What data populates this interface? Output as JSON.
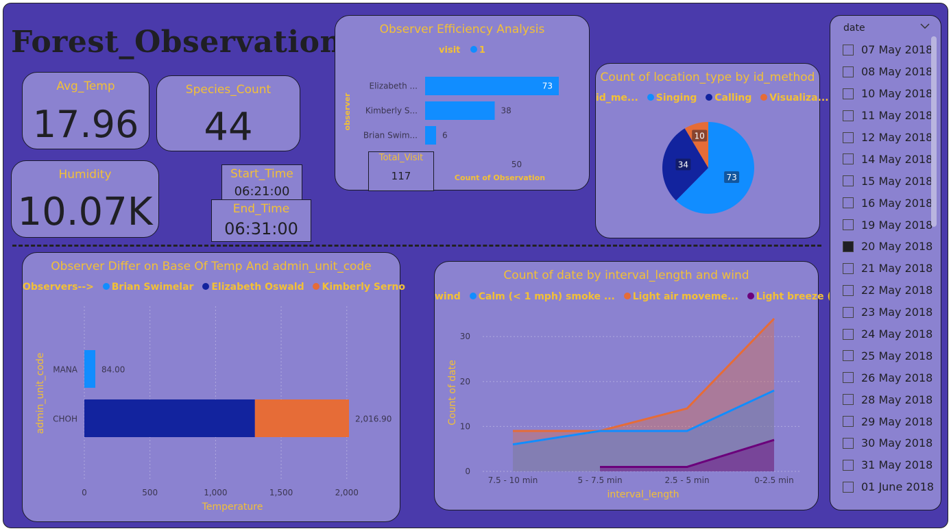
{
  "title": "Forest_Observation  :",
  "kpis": {
    "avg_temp": {
      "label": "Avg_Temp",
      "value": "17.96"
    },
    "species_count": {
      "label": "Species_Count",
      "value": "44"
    },
    "humidity": {
      "label": "Humidity",
      "value": "10.07K"
    },
    "start_time": {
      "label": "Start_Time",
      "value": "06:21:00"
    },
    "end_time": {
      "label": "End_Time",
      "value": "06:31:00"
    },
    "total_visit": {
      "label": "Total_Visit",
      "value": "117"
    }
  },
  "colors": {
    "background": "#4a3aab",
    "card": "#8b82d0",
    "accent_text": "#f2c037",
    "blue": "#118dff",
    "navy": "#12239e",
    "orange": "#e66c37",
    "purple": "#6b007b"
  },
  "efficiency_chart": {
    "title": "Observer Efficiency Analysis",
    "legend_title": "visit",
    "legend_items": [
      "1"
    ],
    "chart_data": {
      "type": "bar",
      "orientation": "horizontal",
      "categories": [
        "Elizabeth ...",
        "Kimberly S...",
        "Brian Swim..."
      ],
      "values": [
        73,
        38,
        6
      ],
      "xlabel": "Count of Observation",
      "ylabel": "observer",
      "x_ticks": [
        "50"
      ],
      "xlim": [
        0,
        100
      ]
    }
  },
  "pie_chart": {
    "title": "Count of location_type by id_method",
    "legend_title": "id_me...",
    "legend_items": [
      "Singing",
      "Calling",
      "Visualiza..."
    ],
    "chart_data": {
      "type": "pie",
      "labels": [
        "Singing",
        "Calling",
        "Visualiza..."
      ],
      "values": [
        73,
        34,
        10
      ],
      "value_labels": [
        "73",
        "34",
        "10"
      ]
    }
  },
  "temp_chart": {
    "title": "Observer Differ on Base Of Temp And admin_unit_code",
    "legend_title": "Observers-->",
    "legend_items": [
      "Brian Swimelar",
      "Elizabeth Oswald",
      "Kimberly Serno"
    ],
    "chart_data": {
      "type": "bar",
      "orientation": "horizontal",
      "stacked": true,
      "categories": [
        "MANA",
        "CHOH"
      ],
      "series": [
        {
          "name": "Brian Swimelar",
          "values": [
            84,
            0
          ]
        },
        {
          "name": "Elizabeth Oswald",
          "values": [
            0,
            1300
          ]
        },
        {
          "name": "Kimberly Serno",
          "values": [
            0,
            716.9
          ]
        }
      ],
      "total_labels": [
        "84.00",
        "2,016.90"
      ],
      "x_ticks": [
        "0",
        "500",
        "1,000",
        "1,500",
        "2,000"
      ],
      "xlim": [
        0,
        2000
      ],
      "xlabel": "Temperature",
      "ylabel": "admin_unit_code"
    }
  },
  "area_chart": {
    "title": "Count of date by interval_length and wind",
    "legend_title": "wind",
    "legend_items": [
      "Calm (< 1 mph) smoke ...",
      "Light air moveme...",
      "Light breeze (..."
    ],
    "chart_data": {
      "type": "area",
      "x": [
        "7.5 - 10 min",
        "5 - 7.5 min",
        "2.5 - 5 min",
        "0-2.5 min"
      ],
      "series": [
        {
          "name": "Light air moveme...",
          "values": [
            9,
            9,
            14,
            34
          ]
        },
        {
          "name": "Calm (< 1 mph) smoke ...",
          "values": [
            6,
            9,
            9,
            18
          ]
        },
        {
          "name": "Light breeze (...",
          "values": [
            null,
            1,
            1,
            7
          ]
        }
      ],
      "y_ticks": [
        "0",
        "10",
        "20",
        "30"
      ],
      "ylim": [
        0,
        34
      ],
      "xlabel": "interval_length",
      "ylabel": "Count of date"
    }
  },
  "slicer": {
    "header": "date",
    "items": [
      {
        "label": "07 May 2018",
        "checked": false
      },
      {
        "label": "08 May 2018",
        "checked": false
      },
      {
        "label": "10 May 2018",
        "checked": false
      },
      {
        "label": "11 May 2018",
        "checked": false
      },
      {
        "label": "12 May 2018",
        "checked": false
      },
      {
        "label": "14 May 2018",
        "checked": false
      },
      {
        "label": "15 May 2018",
        "checked": false
      },
      {
        "label": "16 May 2018",
        "checked": false
      },
      {
        "label": "19 May 2018",
        "checked": false
      },
      {
        "label": "20 May 2018",
        "checked": true
      },
      {
        "label": "21 May 2018",
        "checked": false
      },
      {
        "label": "22 May 2018",
        "checked": false
      },
      {
        "label": "23 May 2018",
        "checked": false
      },
      {
        "label": "24 May 2018",
        "checked": false
      },
      {
        "label": "25 May 2018",
        "checked": false
      },
      {
        "label": "26 May 2018",
        "checked": false
      },
      {
        "label": "28 May 2018",
        "checked": false
      },
      {
        "label": "29 May 2018",
        "checked": false
      },
      {
        "label": "30 May 2018",
        "checked": false
      },
      {
        "label": "31 May 2018",
        "checked": false
      },
      {
        "label": "01 June 2018",
        "checked": false
      }
    ]
  }
}
